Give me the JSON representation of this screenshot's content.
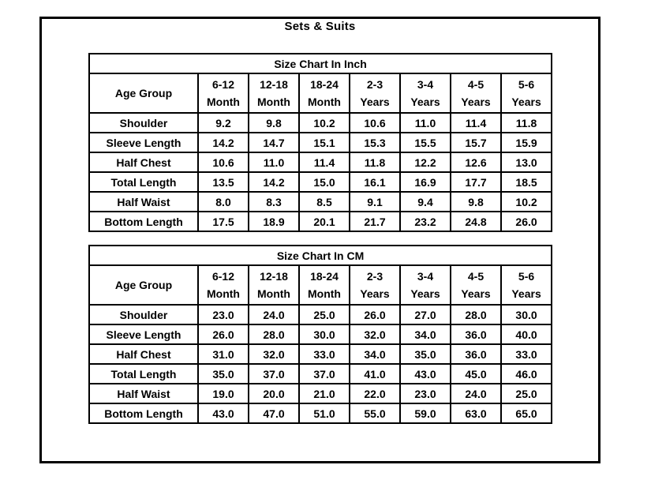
{
  "page_title": "Sets & Suits",
  "accent_colors": {
    "border": "#000000",
    "text": "#000000",
    "background": "#ffffff"
  },
  "tables": [
    {
      "caption": "Size Chart In Inch",
      "corner_label": "Age Group",
      "age_columns": [
        {
          "top": "6-12",
          "bottom": "Month"
        },
        {
          "top": "12-18",
          "bottom": "Month"
        },
        {
          "top": "18-24",
          "bottom": "Month"
        },
        {
          "top": "2-3",
          "bottom": "Years"
        },
        {
          "top": "3-4",
          "bottom": "Years"
        },
        {
          "top": "4-5",
          "bottom": "Years"
        },
        {
          "top": "5-6",
          "bottom": "Years"
        }
      ],
      "rows": [
        {
          "label": "Shoulder",
          "values": [
            "9.2",
            "9.8",
            "10.2",
            "10.6",
            "11.0",
            "11.4",
            "11.8"
          ]
        },
        {
          "label": "Sleeve Length",
          "values": [
            "14.2",
            "14.7",
            "15.1",
            "15.3",
            "15.5",
            "15.7",
            "15.9"
          ]
        },
        {
          "label": "Half Chest",
          "values": [
            "10.6",
            "11.0",
            "11.4",
            "11.8",
            "12.2",
            "12.6",
            "13.0"
          ]
        },
        {
          "label": "Total Length",
          "values": [
            "13.5",
            "14.2",
            "15.0",
            "16.1",
            "16.9",
            "17.7",
            "18.5"
          ]
        },
        {
          "label": "Half Waist",
          "values": [
            "8.0",
            "8.3",
            "8.5",
            "9.1",
            "9.4",
            "9.8",
            "10.2"
          ]
        },
        {
          "label": "Bottom Length",
          "values": [
            "17.5",
            "18.9",
            "20.1",
            "21.7",
            "23.2",
            "24.8",
            "26.0"
          ]
        }
      ]
    },
    {
      "caption": "Size Chart In CM",
      "corner_label": "Age Group",
      "age_columns": [
        {
          "top": "6-12",
          "bottom": "Month"
        },
        {
          "top": "12-18",
          "bottom": "Month"
        },
        {
          "top": "18-24",
          "bottom": "Month"
        },
        {
          "top": "2-3",
          "bottom": "Years"
        },
        {
          "top": "3-4",
          "bottom": "Years"
        },
        {
          "top": "4-5",
          "bottom": "Years"
        },
        {
          "top": "5-6",
          "bottom": "Years"
        }
      ],
      "rows": [
        {
          "label": "Shoulder",
          "values": [
            "23.0",
            "24.0",
            "25.0",
            "26.0",
            "27.0",
            "28.0",
            "30.0"
          ]
        },
        {
          "label": "Sleeve Length",
          "values": [
            "26.0",
            "28.0",
            "30.0",
            "32.0",
            "34.0",
            "36.0",
            "40.0"
          ]
        },
        {
          "label": "Half Chest",
          "values": [
            "31.0",
            "32.0",
            "33.0",
            "34.0",
            "35.0",
            "36.0",
            "33.0"
          ]
        },
        {
          "label": "Total Length",
          "values": [
            "35.0",
            "37.0",
            "37.0",
            "41.0",
            "43.0",
            "45.0",
            "46.0"
          ]
        },
        {
          "label": "Half Waist",
          "values": [
            "19.0",
            "20.0",
            "21.0",
            "22.0",
            "23.0",
            "24.0",
            "25.0"
          ]
        },
        {
          "label": "Bottom Length",
          "values": [
            "43.0",
            "47.0",
            "51.0",
            "55.0",
            "59.0",
            "63.0",
            "65.0"
          ]
        }
      ]
    }
  ]
}
